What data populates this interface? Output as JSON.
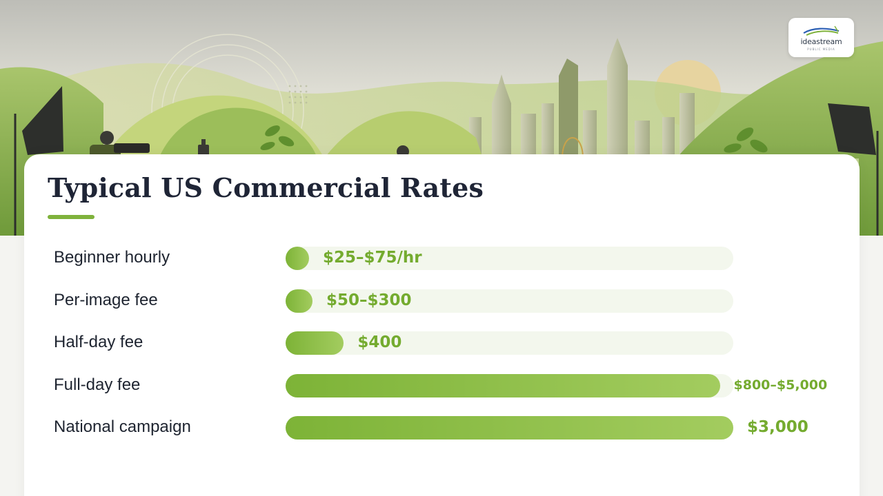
{
  "brand": {
    "logo_text": "ideastream",
    "logo_sub": "PUBLIC MEDIA",
    "accent": "#7fb23c",
    "logo_colors": [
      "#7fb23c",
      "#2b5fb4"
    ]
  },
  "chart_data": {
    "type": "bar",
    "orientation": "horizontal",
    "title": "Typical US Commercial Rates",
    "categories": [
      "Beginner hourly",
      "Per-image fee",
      "Half-day fee",
      "Full-day fee",
      "National campaign"
    ],
    "value_labels": [
      "$25–$75/hr",
      "$50–$300",
      "$400",
      "$800–$5,000",
      "$3,000"
    ],
    "values": [
      0.05,
      0.06,
      0.13,
      0.97,
      1.0
    ],
    "value_scale": "relative bar fill fraction",
    "bar_color": "#7fb23c",
    "track_color": "#f3f7ed",
    "grid": false
  }
}
